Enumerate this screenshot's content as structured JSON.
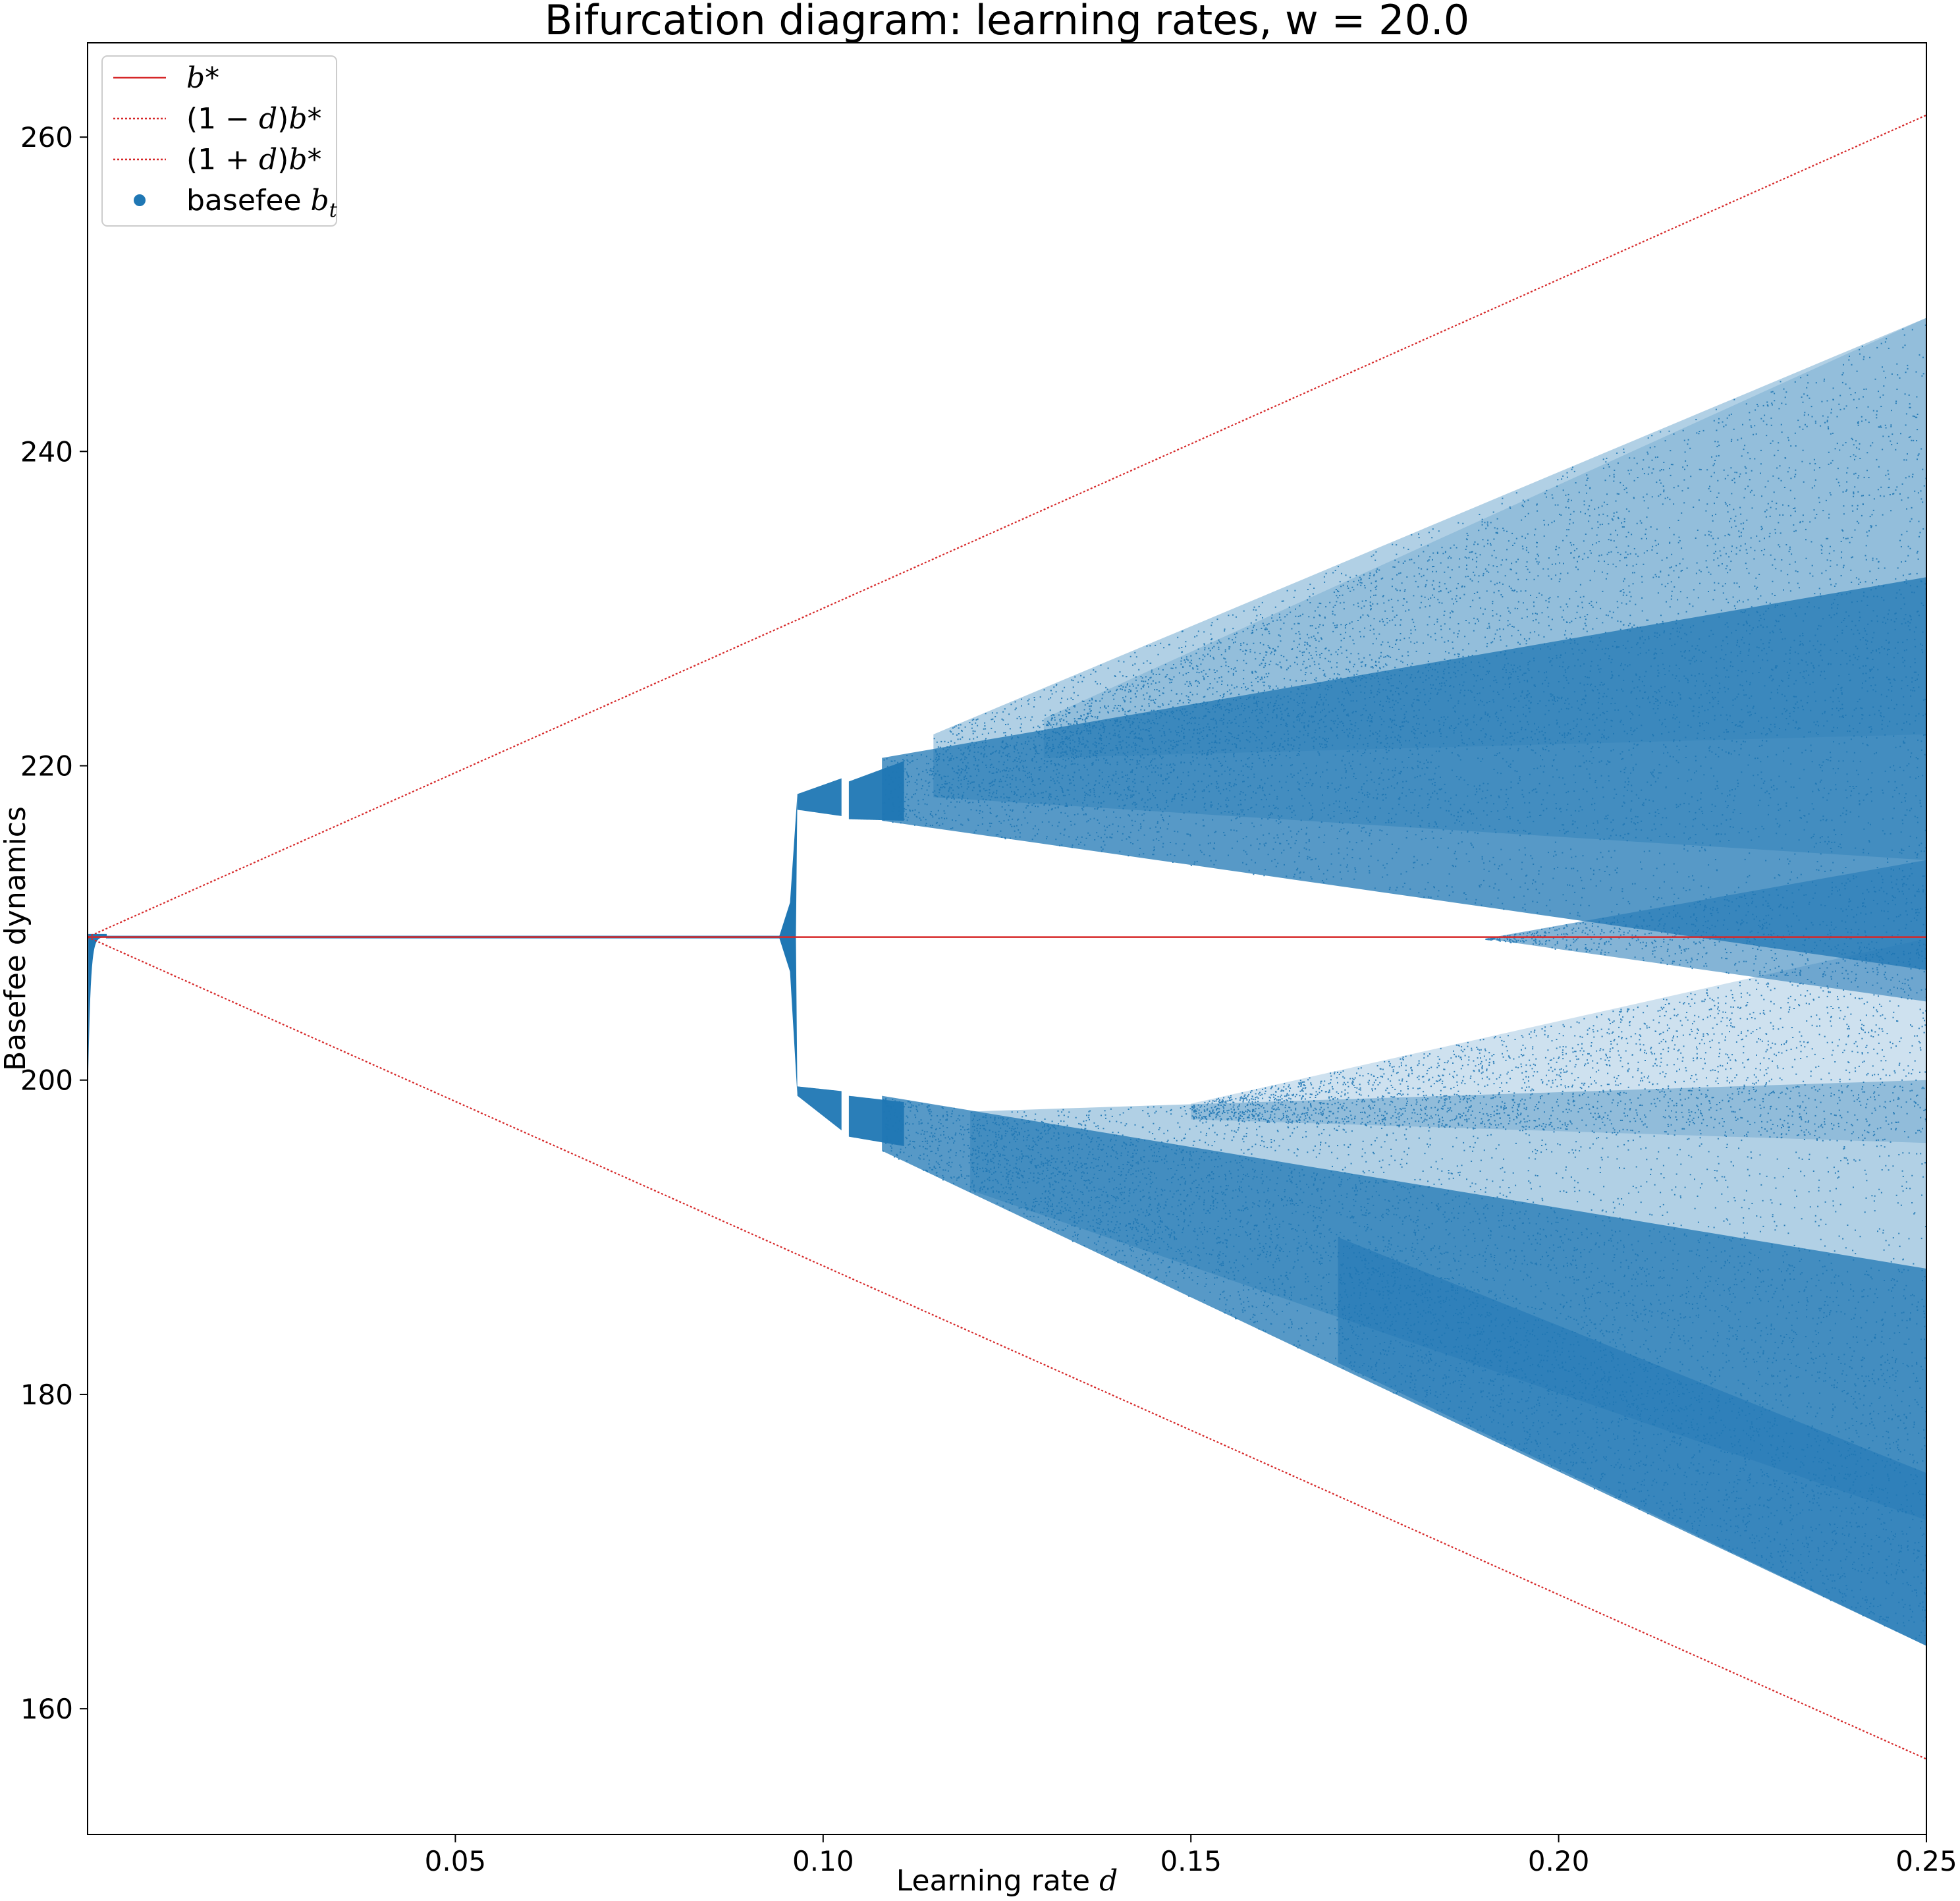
{
  "chart_data": {
    "type": "scatter",
    "title": "Bifurcation diagram: learning rates, w = 20.0",
    "xlabel": "Learning rate d",
    "ylabel": "Basefee dynamics",
    "xlim": [
      0.0,
      0.25
    ],
    "ylim": [
      152,
      266
    ],
    "xticks": [
      0.05,
      0.1,
      0.15,
      0.2,
      0.25
    ],
    "xtick_labels": [
      "0.05",
      "0.10",
      "0.15",
      "0.20",
      "0.25"
    ],
    "yticks": [
      160,
      180,
      200,
      220,
      240,
      260
    ],
    "ytick_labels": [
      "160",
      "180",
      "200",
      "220",
      "240",
      "260"
    ],
    "b_star": 209.1,
    "legend_position": "upper-left",
    "legend": [
      {
        "label": "b*",
        "style": "solid-line"
      },
      {
        "label": "(1 − d)b*",
        "style": "dotted-line"
      },
      {
        "label": "(1 + d)b*",
        "style": "dotted-line"
      },
      {
        "label": "basefee b_t",
        "style": "marker"
      }
    ],
    "series": [
      {
        "name": "b*",
        "x": [
          0.0,
          0.25
        ],
        "y": [
          209.1,
          209.1
        ]
      },
      {
        "name": "(1 − d)b*",
        "x": [
          0.0,
          0.25
        ],
        "y": [
          209.1,
          156.8
        ]
      },
      {
        "name": "(1 + d)b*",
        "x": [
          0.0,
          0.25
        ],
        "y": [
          209.1,
          261.4
        ]
      },
      {
        "name": "basefee b_t",
        "description_points": [
          {
            "d": 0.0005,
            "min": 200.5,
            "max": 209.1
          },
          {
            "d": 0.095,
            "min": 209.1,
            "max": 209.1
          },
          {
            "d": 0.0965,
            "min": 199.0,
            "max": 218.2
          },
          {
            "d": 0.105,
            "min": 196.5,
            "max": 219.5
          },
          {
            "d": 0.15,
            "min": 184.0,
            "max": 227.5
          },
          {
            "d": 0.2,
            "min": 172.0,
            "max": 240.0
          },
          {
            "d": 0.25,
            "min": 164.0,
            "max": 248.5
          }
        ]
      }
    ]
  },
  "colors": {
    "reference": "#d62728",
    "points": "#1f77b4"
  }
}
